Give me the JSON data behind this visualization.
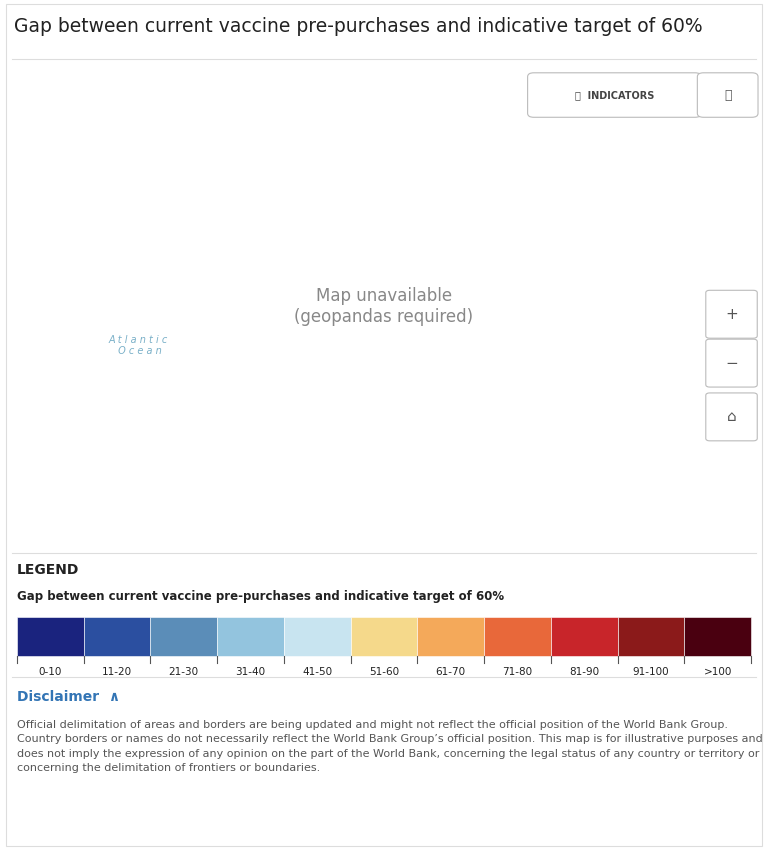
{
  "title": "Gap between current vaccine pre-purchases and indicative target of 60%",
  "legend_title": "Gap between current vaccine pre-purchases and indicative target of 60%",
  "legend_labels": [
    "0-10",
    "11-20",
    "21-30",
    "31-40",
    "41-50",
    "51-60",
    "61-70",
    "71-80",
    "81-90",
    "91-100",
    ">100"
  ],
  "legend_colors": [
    "#1a237e",
    "#2b4fa0",
    "#5b8db8",
    "#93c4de",
    "#c8e4f0",
    "#f5d98b",
    "#f4a95a",
    "#e8683a",
    "#c8252a",
    "#8b1a1a",
    "#4a0010"
  ],
  "ocean_color": "#b3d9ea",
  "land_no_data": "#ffffff",
  "background_color": "#ffffff",
  "border_color": "#dddddd",
  "map_frame_color": "#cccccc",
  "disclaimer_color": "#3375b5",
  "text_color": "#222222",
  "atlantic_text_color": "#7ab0c8",
  "country_edge_color": "#ffffff",
  "country_edge_width": 0.3,
  "disclaimer_text": "Official delimitation of areas and borders are being updated and might not reflect the official position of the World Bank Group. Country borders or names do not necessarily reflect the World Bank Group’s official position. This map is for illustrative purposes and does not imply the expression of any opinion on the part of the World Bank, concerning the legal status of any country or territory or concerning the delimitation of frontiers or boundaries.",
  "country_colors": {
    "United States of America": "#1a237e",
    "Canada": "#ffffff",
    "Mexico": "#2b4fa0",
    "Guatemala": "#2b4fa0",
    "Belize": "#2b4fa0",
    "Honduras": "#2b4fa0",
    "El Salvador": "#2b4fa0",
    "Nicaragua": "#2b4fa0",
    "Costa Rica": "#2b4fa0",
    "Panama": "#2b4fa0",
    "Cuba": "#2b4fa0",
    "Jamaica": "#2b4fa0",
    "Haiti": "#2b4fa0",
    "Dominican Rep.": "#2b4fa0",
    "Puerto Rico": "#2b4fa0",
    "Trinidad and Tobago": "#2b4fa0",
    "Colombia": "#5b8db8",
    "Venezuela": "#5b8db8",
    "Guyana": "#5b8db8",
    "Suriname": "#5b8db8",
    "Ecuador": "#5b8db8",
    "Peru": "#5b8db8",
    "Brazil": "#5b8db8",
    "Bolivia": "#5b8db8",
    "Paraguay": "#5b8db8",
    "Chile": "#5b8db8",
    "Argentina": "#5b8db8",
    "Uruguay": "#5b8db8",
    "Greenland": "#ffffff",
    "Iceland": "#ffffff",
    "Norway": "#ffffff",
    "Sweden": "#ffffff",
    "Finland": "#ffffff",
    "Denmark": "#ffffff",
    "United Kingdom": "#ffffff",
    "Ireland": "#ffffff",
    "Netherlands": "#ffffff",
    "Belgium": "#ffffff",
    "Luxembourg": "#ffffff",
    "France": "#ffffff",
    "Spain": "#ffffff",
    "Portugal": "#ffffff",
    "Germany": "#ffffff",
    "Switzerland": "#ffffff",
    "Austria": "#ffffff",
    "Italy": "#ffffff",
    "Poland": "#ffffff",
    "Czech Rep.": "#ffffff",
    "Slovakia": "#ffffff",
    "Hungary": "#ffffff",
    "Romania": "#ffffff",
    "Bulgaria": "#ffffff",
    "Serbia": "#ffffff",
    "Croatia": "#ffffff",
    "Bosnia and Herz.": "#ffffff",
    "Slovenia": "#ffffff",
    "Albania": "#ffffff",
    "North Macedonia": "#ffffff",
    "Montenegro": "#ffffff",
    "Kosovo": "#ffffff",
    "Greece": "#ffffff",
    "Turkey": "#5b8db8",
    "Estonia": "#ffffff",
    "Latvia": "#ffffff",
    "Lithuania": "#ffffff",
    "Belarus": "#ffffff",
    "Ukraine": "#f5d98b",
    "Moldova": "#ffffff",
    "Russia": "#ffffff",
    "Georgia": "#ffffff",
    "Armenia": "#c8e4f0",
    "Azerbaijan": "#c8e4f0",
    "Kazakhstan": "#c8e4f0",
    "Uzbekistan": "#c8e4f0",
    "Turkmenistan": "#c8e4f0",
    "Kyrgyzstan": "#c8e4f0",
    "Tajikistan": "#c8e4f0",
    "Afghanistan": "#2b4fa0",
    "Pakistan": "#2b4fa0",
    "India": "#93c4de",
    "Nepal": "#2b4fa0",
    "Bangladesh": "#2b4fa0",
    "Myanmar": "#2b4fa0",
    "Thailand": "#2b4fa0",
    "Laos": "#2b4fa0",
    "Vietnam": "#2b4fa0",
    "Cambodia": "#2b4fa0",
    "Malaysia": "#2b4fa0",
    "Indonesia": "#2b4fa0",
    "Philippines": "#2b4fa0",
    "China": "#c8e4f0",
    "Mongolia": "#c8e4f0",
    "North Korea": "#c8e4f0",
    "South Korea": "#c8e4f0",
    "Japan": "#ffffff",
    "Sri Lanka": "#2b4fa0",
    "Iran": "#1a237e",
    "Iraq": "#1a237e",
    "Syria": "#5b8db8",
    "Lebanon": "#5b8db8",
    "Jordan": "#5b8db8",
    "Israel": "#ffffff",
    "Palestine": "#5b8db8",
    "Saudi Arabia": "#1a237e",
    "Kuwait": "#1a237e",
    "Bahrain": "#1a237e",
    "Qatar": "#1a237e",
    "United Arab Emirates": "#1a237e",
    "Oman": "#1a237e",
    "Yemen": "#2b4fa0",
    "Egypt": "#ffffff",
    "Libya": "#5b8db8",
    "Tunisia": "#93c4de",
    "Algeria": "#5b8db8",
    "Morocco": "#5b8db8",
    "Mauritania": "#5b8db8",
    "Senegal": "#5b8db8",
    "Gambia": "#5b8db8",
    "Guinea-Bissau": "#5b8db8",
    "Guinea": "#5b8db8",
    "Sierra Leone": "#5b8db8",
    "Liberia": "#5b8db8",
    "Mali": "#2b4fa0",
    "Burkina Faso": "#2b4fa0",
    "Côte d'Ivoire": "#2b4fa0",
    "Ghana": "#2b4fa0",
    "Togo": "#2b4fa0",
    "Benin": "#2b4fa0",
    "Niger": "#2b4fa0",
    "Nigeria": "#1a237e",
    "Cameroon": "#5b8db8",
    "Chad": "#5b8db8",
    "Central African Rep.": "#5b8db8",
    "Sudan": "#2b4fa0",
    "South Sudan": "#5b8db8",
    "Ethiopia": "#2b4fa0",
    "Eritrea": "#2b4fa0",
    "Djibouti": "#2b4fa0",
    "Somalia": "#5b8db8",
    "Uganda": "#2b4fa0",
    "Kenya": "#2b4fa0",
    "Rwanda": "#2b4fa0",
    "Burundi": "#2b4fa0",
    "Tanzania": "#2b4fa0",
    "Dem. Rep. Congo": "#5b8db8",
    "Congo": "#5b8db8",
    "Gabon": "#5b8db8",
    "Eq. Guinea": "#5b8db8",
    "São Tomé and Príncipe": "#5b8db8",
    "Angola": "#2b4fa0",
    "Zambia": "#2b4fa0",
    "Malawi": "#2b4fa0",
    "Mozambique": "#2b4fa0",
    "Zimbabwe": "#2b4fa0",
    "Botswana": "#5b8db8",
    "Namibia": "#5b8db8",
    "South Africa": "#93c4de",
    "Lesotho": "#5b8db8",
    "Swaziland": "#5b8db8",
    "Madagascar": "#5b8db8",
    "Australia": "#ffffff",
    "New Zealand": "#ffffff",
    "Papua New Guinea": "#5b8db8",
    "Fiji": "#5b8db8",
    "W. Sahara": "#ffffff"
  }
}
